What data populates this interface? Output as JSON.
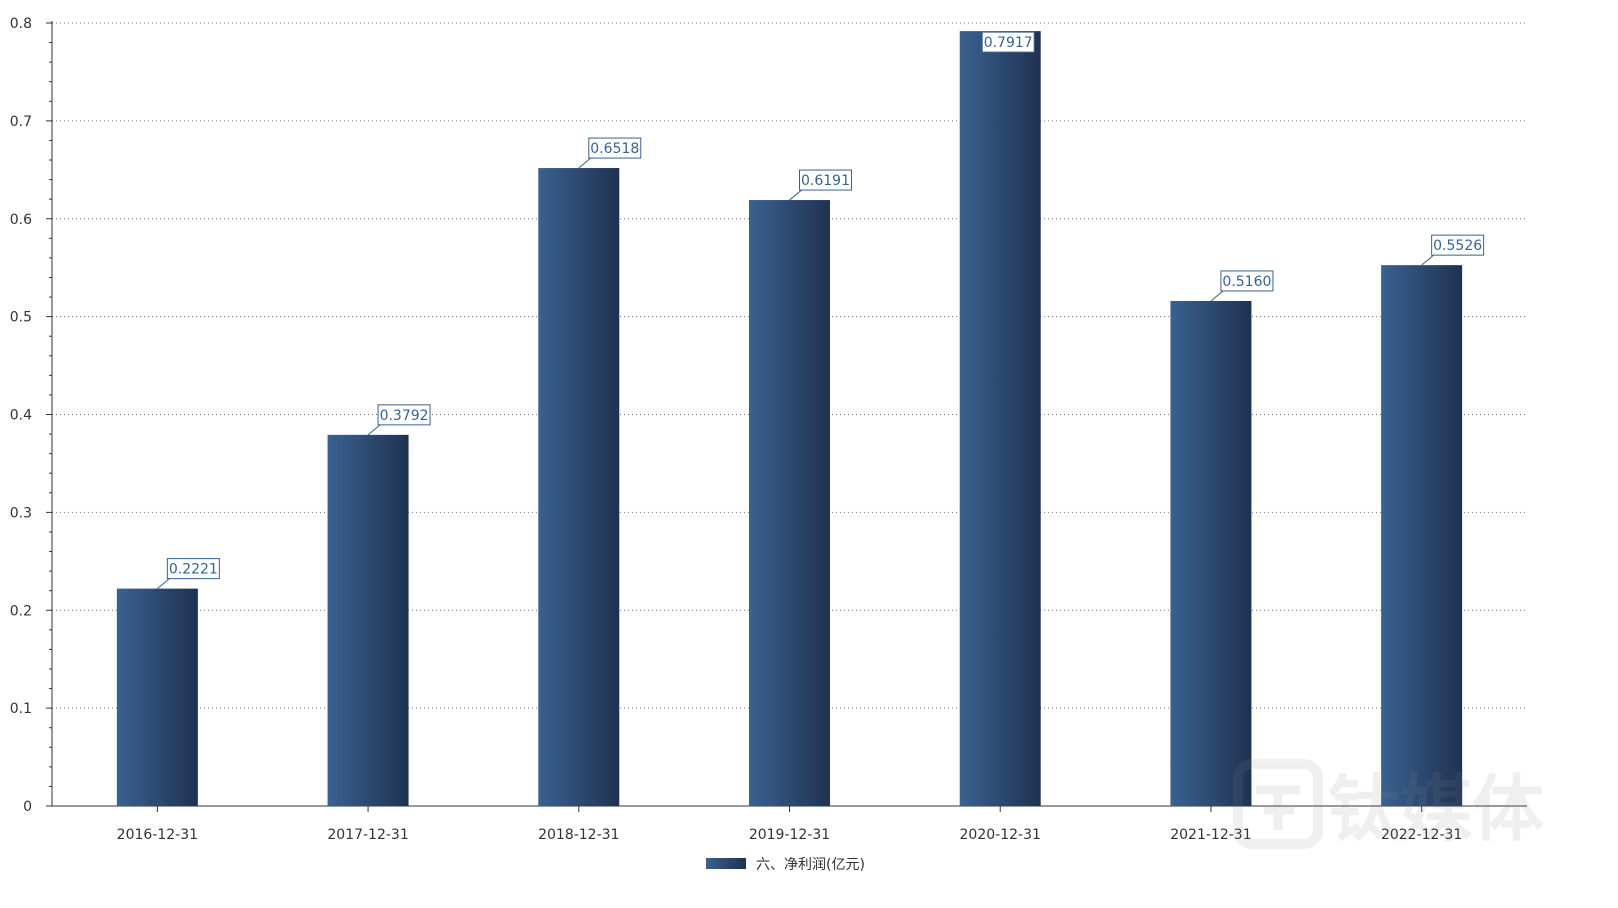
{
  "chart_data": {
    "type": "bar",
    "categories": [
      "2016-12-31",
      "2017-12-31",
      "2018-12-31",
      "2019-12-31",
      "2020-12-31",
      "2021-12-31",
      "2022-12-31"
    ],
    "series": [
      {
        "name": "六、净利润(亿元)",
        "values": [
          0.2221,
          0.3792,
          0.6518,
          0.6191,
          0.7917,
          0.516,
          0.5526
        ],
        "labels": [
          "0.2221",
          "0.3792",
          "0.6518",
          "0.6191",
          "0.7917",
          "0.5160",
          "0.5526"
        ]
      }
    ],
    "ylim": [
      0,
      0.8
    ],
    "yticks": [
      "0",
      "0.1",
      "0.2",
      "0.3",
      "0.4",
      "0.5",
      "0.6",
      "0.7",
      "0.8"
    ],
    "grid": "horizontal-dotted",
    "legend_position": "bottom-center",
    "colors": {
      "bar_light": "#3a6190",
      "bar_dark": "#1f3250",
      "label_border": "#3a6190",
      "label_text": "#3a6190",
      "axis": "#333333",
      "grid": "#777777"
    }
  },
  "watermark": {
    "text": "钛媒体"
  }
}
